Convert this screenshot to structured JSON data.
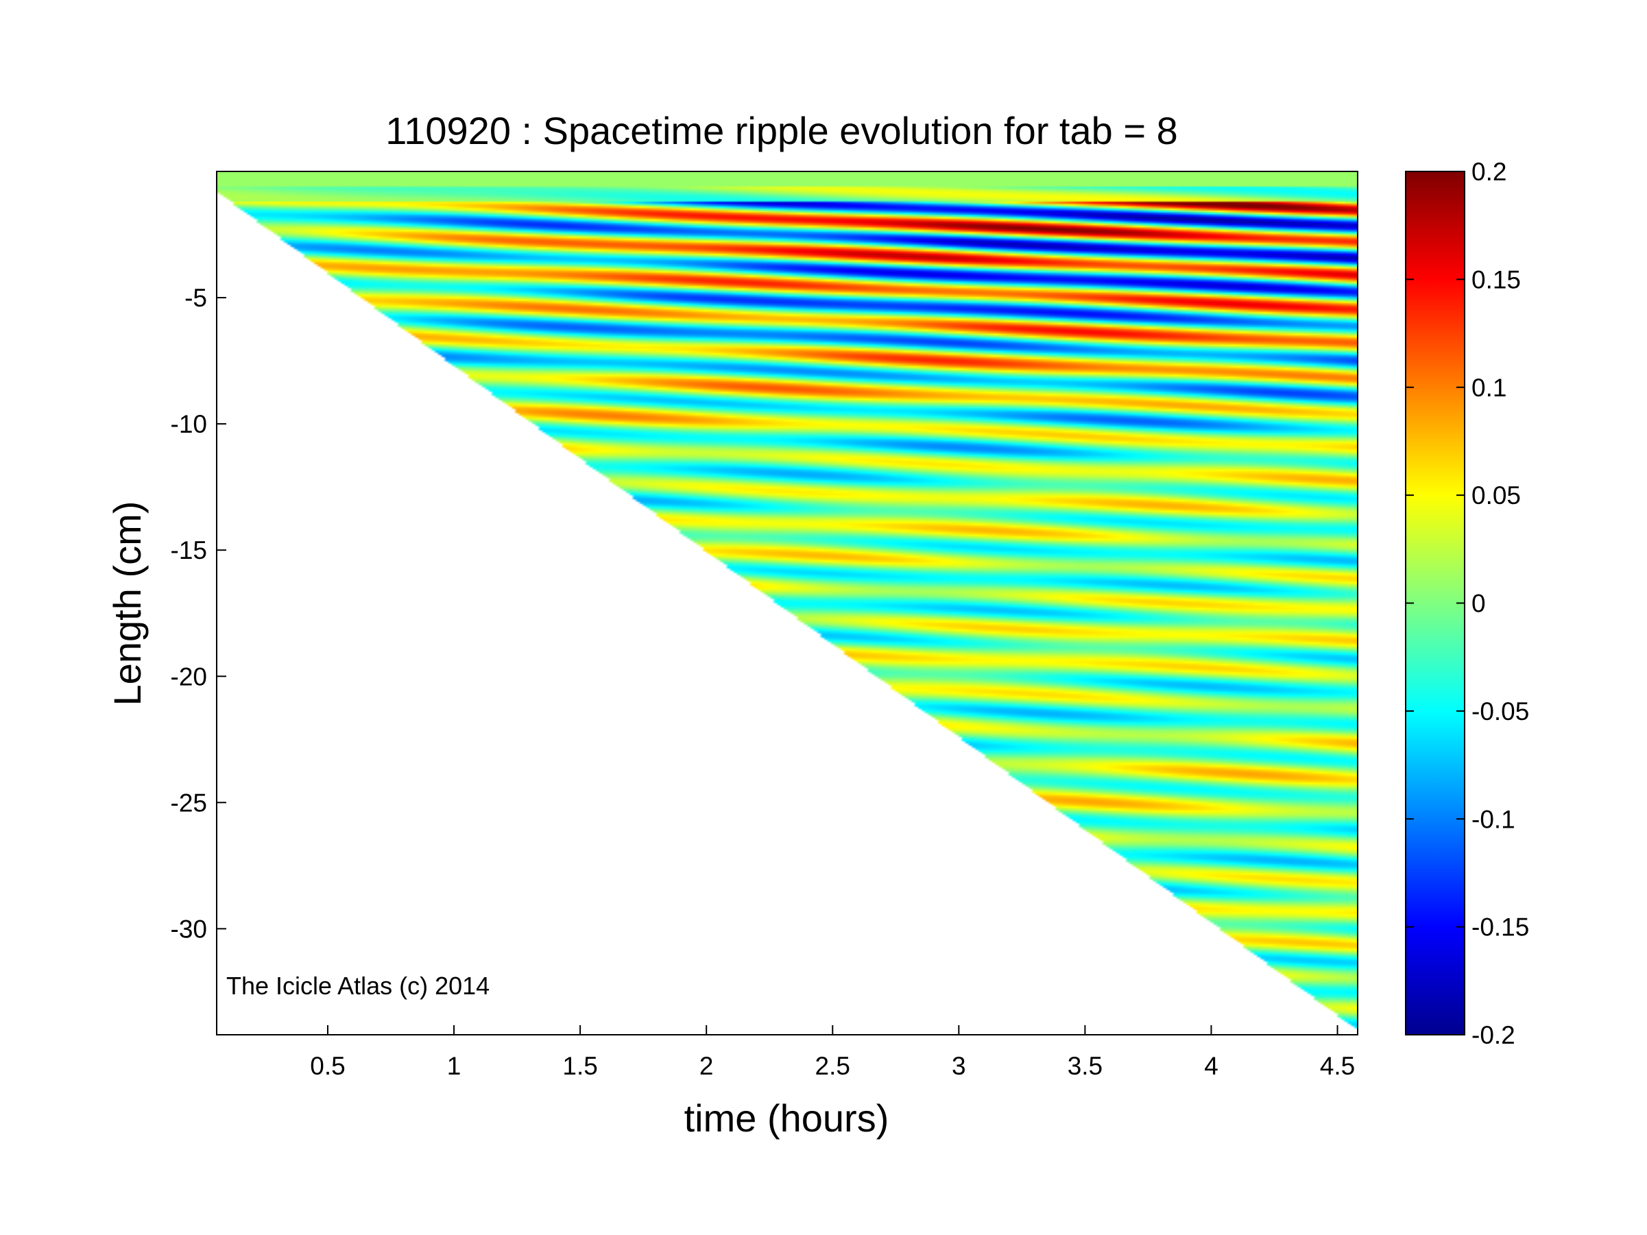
{
  "chart_data": {
    "type": "heatmap",
    "title": "110920 : Spacetime ripple evolution for tab = 8",
    "xlabel": "time (hours)",
    "ylabel": "Length (cm)",
    "xlim": [
      0.06,
      4.58
    ],
    "ylim": [
      -34.2,
      0.0
    ],
    "xticks": [
      0.5,
      1,
      1.5,
      2,
      2.5,
      3,
      3.5,
      4,
      4.5
    ],
    "xtick_labels": [
      "0.5",
      "1",
      "1.5",
      "2",
      "2.5",
      "3",
      "3.5",
      "4",
      "4.5"
    ],
    "yticks": [
      -5,
      -10,
      -15,
      -20,
      -25,
      -30
    ],
    "ytick_labels": [
      "-5",
      "-10",
      "-15",
      "-20",
      "-25",
      "-30"
    ],
    "colorbar": {
      "colormap": "jet",
      "clim": [
        -0.2,
        0.2
      ],
      "ticks": [
        0.2,
        0.15,
        0.1,
        0.05,
        0,
        -0.05,
        -0.1,
        -0.15,
        -0.2
      ],
      "tick_labels": [
        "0.2",
        "0.15",
        "0.1",
        "0.05",
        "0",
        "-0.05",
        "-0.1",
        "-0.15",
        "-0.2"
      ]
    },
    "annotation": "The Icicle Atlas (c) 2014",
    "data_boundary": "icicle tip grows linearly from about -0.8 cm at 0.06 h to about -34 cm at 4.55 h; region below the tip is empty (white)",
    "grid": false
  }
}
